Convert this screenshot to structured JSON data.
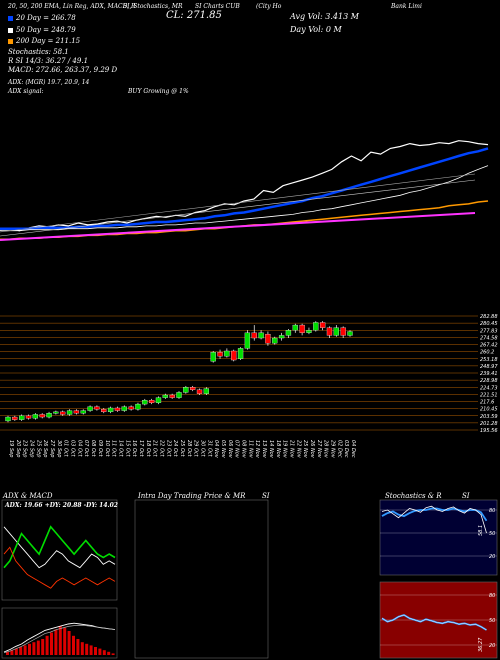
{
  "header": {
    "title_parts": [
      "20, 50, 200 EMA, Lin Reg, ADX, MACD, R",
      "SI, Stochastics, MR",
      "SI Charts CUB",
      "(City Ho",
      "Bank Limi"
    ],
    "close_label": "CL: 271.85",
    "avg_vol": "Avg Vol: 3.413 M",
    "day_vol": "Day Vol: 0  M"
  },
  "legend": {
    "ema20": "20  Day = 266.78",
    "ema50": "50  Day = 248.79",
    "ema200": "200  Day = 211.15",
    "stochastics": "Stochastics: 58.1",
    "rsi": "R                  SI 14/3: 36.27 / 49.1",
    "macd": "MACD: 272.66, 263.37, 9.29 D",
    "adx": "ADX:                        (MGR) 19.7, 20.9, 14",
    "adx_signal_label": "ADX  signal:",
    "adx_signal": "BUY Growing @ 1%"
  },
  "colors": {
    "ema20_color": "#0044ff",
    "ema50_color": "#ffffff",
    "ema200_color": "#ff9900",
    "linreg_color": "#ff33ff",
    "bull": "#00dd00",
    "bear": "#ff0000",
    "hline": "#ff8800"
  },
  "chart_data": [
    {
      "type": "line",
      "name": "price-ema-overview",
      "series": [
        {
          "name": "Price",
          "values": [
            181,
            182,
            180,
            183,
            185,
            184,
            186,
            185,
            188,
            186,
            187,
            189,
            190,
            188,
            191,
            193,
            195,
            194,
            196,
            195,
            199,
            201,
            205,
            208,
            207,
            211,
            213,
            222,
            220,
            227,
            230,
            233,
            236,
            240,
            244,
            252,
            258,
            253,
            262,
            260,
            266,
            268,
            271,
            269,
            270,
            272,
            271,
            274,
            273,
            271,
            270
          ]
        },
        {
          "name": "20 Day",
          "values": [
            182,
            182,
            182,
            182,
            183,
            183,
            183,
            183,
            184,
            184,
            185,
            185,
            186,
            186,
            187,
            188,
            189,
            189,
            190,
            191,
            192,
            193,
            195,
            196,
            198,
            199,
            201,
            203,
            205,
            207,
            209,
            211,
            214,
            216,
            219,
            222,
            225,
            228,
            231,
            234,
            237,
            240,
            243,
            246,
            249,
            252,
            255,
            258,
            261,
            263,
            266
          ]
        },
        {
          "name": "50 Day",
          "values": [
            180,
            180,
            180,
            181,
            181,
            181,
            181,
            182,
            182,
            182,
            183,
            183,
            183,
            184,
            184,
            185,
            185,
            186,
            186,
            187,
            188,
            188,
            189,
            190,
            191,
            192,
            193,
            194,
            195,
            196,
            197,
            199,
            200,
            202,
            203,
            205,
            207,
            209,
            211,
            213,
            215,
            217,
            220,
            222,
            225,
            228,
            231,
            235,
            240,
            244,
            248
          ]
        },
        {
          "name": "200 Day",
          "values": [
            171,
            171,
            172,
            172,
            172,
            173,
            173,
            174,
            174,
            175,
            175,
            176,
            176,
            177,
            177,
            178,
            178,
            179,
            180,
            180,
            181,
            182,
            182,
            183,
            184,
            185,
            186,
            186,
            187,
            188,
            189,
            190,
            191,
            192,
            193,
            194,
            195,
            196,
            197,
            198,
            199,
            200,
            201,
            202,
            203,
            204,
            206,
            207,
            208,
            210,
            211
          ]
        }
      ]
    },
    {
      "type": "bar",
      "name": "candlestick",
      "categories": [
        "19 Sep",
        "20 Sep",
        "23 Sep",
        "24 Sep",
        "25 Sep",
        "26 Sep",
        "27 Sep",
        "30 Sep",
        "01 Oct",
        "03 Oct",
        "04 Oct",
        "07 Oct",
        "08 Oct",
        "09 Oct",
        "10 Oct",
        "11 Oct",
        "14 Oct",
        "15 Oct",
        "16 Oct",
        "17 Oct",
        "18 Oct",
        "21 Oct",
        "22 Oct",
        "23 Oct",
        "24 Oct",
        "25 Oct",
        "28 Oct",
        "29 Oct",
        "30 Oct",
        "31 Oct",
        "04 Nov",
        "05 Nov",
        "06 Nov",
        "07 Nov",
        "08 Nov",
        "11 Nov",
        "12 Nov",
        "13 Nov",
        "14 Nov",
        "18 Nov",
        "19 Nov",
        "21 Nov",
        "22 Nov",
        "25 Nov",
        "26 Nov",
        "27 Nov",
        "28 Nov",
        "29 Nov",
        "02 Dec",
        "03 Dec",
        "04 Dec"
      ],
      "ylabels": [
        "282.88",
        "280.45",
        "277.83",
        "274.58",
        "267.42",
        "260.2",
        "253.18",
        "248.97",
        "239.41",
        "228.98",
        "224.73",
        "221.51",
        "217.6",
        "210.45",
        "203.59",
        "201.28",
        "195.56"
      ],
      "candles": [
        {
          "o": 202,
          "c": 205,
          "h": 206,
          "l": 201
        },
        {
          "o": 205,
          "c": 203,
          "h": 206,
          "l": 202
        },
        {
          "o": 203,
          "c": 206,
          "h": 207,
          "l": 202
        },
        {
          "o": 206,
          "c": 204,
          "h": 207,
          "l": 203
        },
        {
          "o": 204,
          "c": 207,
          "h": 208,
          "l": 203
        },
        {
          "o": 207,
          "c": 205,
          "h": 208,
          "l": 204
        },
        {
          "o": 205,
          "c": 208,
          "h": 209,
          "l": 204
        },
        {
          "o": 208,
          "c": 209,
          "h": 210,
          "l": 207
        },
        {
          "o": 209,
          "c": 207,
          "h": 210,
          "l": 206
        },
        {
          "o": 207,
          "c": 210,
          "h": 211,
          "l": 206
        },
        {
          "o": 210,
          "c": 208,
          "h": 211,
          "l": 207
        },
        {
          "o": 208,
          "c": 210,
          "h": 211,
          "l": 207
        },
        {
          "o": 210,
          "c": 213,
          "h": 214,
          "l": 209
        },
        {
          "o": 213,
          "c": 211,
          "h": 214,
          "l": 210
        },
        {
          "o": 211,
          "c": 209,
          "h": 212,
          "l": 208
        },
        {
          "o": 209,
          "c": 212,
          "h": 213,
          "l": 208
        },
        {
          "o": 212,
          "c": 210,
          "h": 213,
          "l": 209
        },
        {
          "o": 210,
          "c": 213,
          "h": 214,
          "l": 209
        },
        {
          "o": 213,
          "c": 211,
          "h": 214,
          "l": 210
        },
        {
          "o": 211,
          "c": 215,
          "h": 216,
          "l": 210
        },
        {
          "o": 215,
          "c": 218,
          "h": 219,
          "l": 214
        },
        {
          "o": 218,
          "c": 216,
          "h": 219,
          "l": 215
        },
        {
          "o": 216,
          "c": 220,
          "h": 221,
          "l": 215
        },
        {
          "o": 220,
          "c": 222,
          "h": 223,
          "l": 219
        },
        {
          "o": 222,
          "c": 220,
          "h": 223,
          "l": 219
        },
        {
          "o": 220,
          "c": 224,
          "h": 225,
          "l": 219
        },
        {
          "o": 224,
          "c": 228,
          "h": 229,
          "l": 223
        },
        {
          "o": 228,
          "c": 226,
          "h": 229,
          "l": 225
        },
        {
          "o": 226,
          "c": 223,
          "h": 227,
          "l": 222
        },
        {
          "o": 223,
          "c": 227,
          "h": 228,
          "l": 222
        },
        {
          "o": 248,
          "c": 255,
          "h": 256,
          "l": 247
        },
        {
          "o": 255,
          "c": 252,
          "h": 257,
          "l": 250
        },
        {
          "o": 252,
          "c": 256,
          "h": 258,
          "l": 251
        },
        {
          "o": 256,
          "c": 249,
          "h": 257,
          "l": 248
        },
        {
          "o": 250,
          "c": 258,
          "h": 259,
          "l": 249
        },
        {
          "o": 258,
          "c": 270,
          "h": 272,
          "l": 257
        },
        {
          "o": 270,
          "c": 266,
          "h": 276,
          "l": 264
        },
        {
          "o": 266,
          "c": 270,
          "h": 272,
          "l": 265
        },
        {
          "o": 269,
          "c": 262,
          "h": 271,
          "l": 260
        },
        {
          "o": 262,
          "c": 266,
          "h": 267,
          "l": 261
        },
        {
          "o": 266,
          "c": 268,
          "h": 270,
          "l": 264
        },
        {
          "o": 268,
          "c": 272,
          "h": 273,
          "l": 266
        },
        {
          "o": 272,
          "c": 276,
          "h": 277,
          "l": 270
        },
        {
          "o": 276,
          "c": 270,
          "h": 277,
          "l": 268
        },
        {
          "o": 270,
          "c": 272,
          "h": 274,
          "l": 269
        },
        {
          "o": 272,
          "c": 278,
          "h": 279,
          "l": 271
        },
        {
          "o": 278,
          "c": 274,
          "h": 279,
          "l": 272
        },
        {
          "o": 274,
          "c": 268,
          "h": 275,
          "l": 266
        },
        {
          "o": 268,
          "c": 274,
          "h": 276,
          "l": 267
        },
        {
          "o": 274,
          "c": 268,
          "h": 275,
          "l": 266
        },
        {
          "o": 268,
          "c": 271,
          "h": 272,
          "l": 267
        }
      ],
      "ylim": [
        195,
        283
      ]
    },
    {
      "type": "line",
      "name": "adx-macd",
      "title": "ADX  & MACD",
      "adx_values": "ADX: 19.66  +DY: 20.88  -DY: 14.02",
      "series": [
        {
          "name": "ADX",
          "values": [
            30,
            28,
            26,
            24,
            22,
            20,
            18,
            19,
            21,
            23,
            22,
            20,
            19,
            18,
            20,
            22,
            21,
            19,
            20,
            19
          ]
        },
        {
          "name": "+DY",
          "values": [
            18,
            20,
            24,
            28,
            26,
            24,
            22,
            26,
            30,
            28,
            26,
            24,
            22,
            24,
            26,
            24,
            22,
            21,
            22,
            21
          ]
        },
        {
          "name": "-DY",
          "values": [
            22,
            24,
            20,
            18,
            16,
            15,
            14,
            13,
            12,
            14,
            15,
            14,
            13,
            14,
            15,
            14,
            13,
            14,
            15,
            14
          ]
        }
      ]
    },
    {
      "type": "line",
      "name": "intraday",
      "title": "Intra  Day  Trading  Price  & MR",
      "title_right": "SI"
    },
    {
      "type": "line",
      "name": "stochastics",
      "title": "Stochastics & R",
      "title_right": "SI",
      "ylabels_top": [
        "80",
        "50",
        "20"
      ],
      "ylabels_bottom": [
        "80",
        "50",
        "20"
      ],
      "marker_top": "58.1",
      "marker_bottom": "36.27",
      "series": [
        {
          "name": "Stoch %K",
          "values": [
            78,
            80,
            75,
            70,
            76,
            82,
            80,
            77,
            83,
            85,
            80,
            78,
            82,
            84,
            79,
            76,
            82,
            80,
            74,
            50
          ]
        },
        {
          "name": "Stoch %D",
          "values": [
            72,
            76,
            78,
            74,
            72,
            76,
            79,
            80,
            80,
            82,
            82,
            80,
            80,
            82,
            80,
            78,
            80,
            80,
            77,
            66
          ]
        },
        {
          "name": "RSI",
          "values": [
            52,
            48,
            50,
            54,
            56,
            52,
            50,
            48,
            51,
            49,
            47,
            46,
            48,
            47,
            45,
            46,
            44,
            45,
            42,
            38
          ]
        }
      ]
    }
  ]
}
